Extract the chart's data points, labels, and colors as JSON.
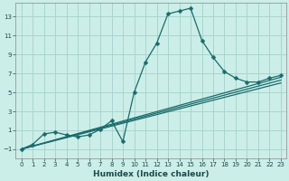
{
  "xlabel": "Humidex (Indice chaleur)",
  "bg_color": "#cceee8",
  "grid_color": "#aad4ce",
  "line_color": "#1a6b6b",
  "xlim": [
    -0.5,
    23.5
  ],
  "ylim": [
    -2.0,
    14.5
  ],
  "xticks": [
    0,
    1,
    2,
    3,
    4,
    5,
    6,
    7,
    8,
    9,
    10,
    11,
    12,
    13,
    14,
    15,
    16,
    17,
    18,
    19,
    20,
    21,
    22,
    23
  ],
  "yticks": [
    -1,
    1,
    3,
    5,
    7,
    9,
    11,
    13
  ],
  "main_x": [
    0,
    1,
    2,
    3,
    4,
    5,
    6,
    7,
    8,
    9,
    10,
    11,
    12,
    13,
    14,
    15,
    16,
    17,
    18,
    19,
    20,
    21,
    22,
    23
  ],
  "main_y": [
    -1.0,
    -0.5,
    0.6,
    0.8,
    0.5,
    0.3,
    0.5,
    1.1,
    2.0,
    -0.2,
    5.0,
    8.2,
    10.2,
    13.3,
    13.6,
    13.9,
    10.5,
    8.7,
    7.2,
    6.5,
    6.1,
    6.1,
    6.5,
    6.8
  ],
  "line1_x": [
    0,
    23
  ],
  "line1_y": [
    -1.0,
    6.0
  ],
  "line2_x": [
    0,
    23
  ],
  "line2_y": [
    -1.0,
    6.3
  ],
  "line3_x": [
    0,
    23
  ],
  "line3_y": [
    -1.0,
    6.6
  ],
  "marker_size": 2.5,
  "linewidth": 0.9,
  "xlabel_fontsize": 6.5,
  "tick_fontsize": 5.0
}
